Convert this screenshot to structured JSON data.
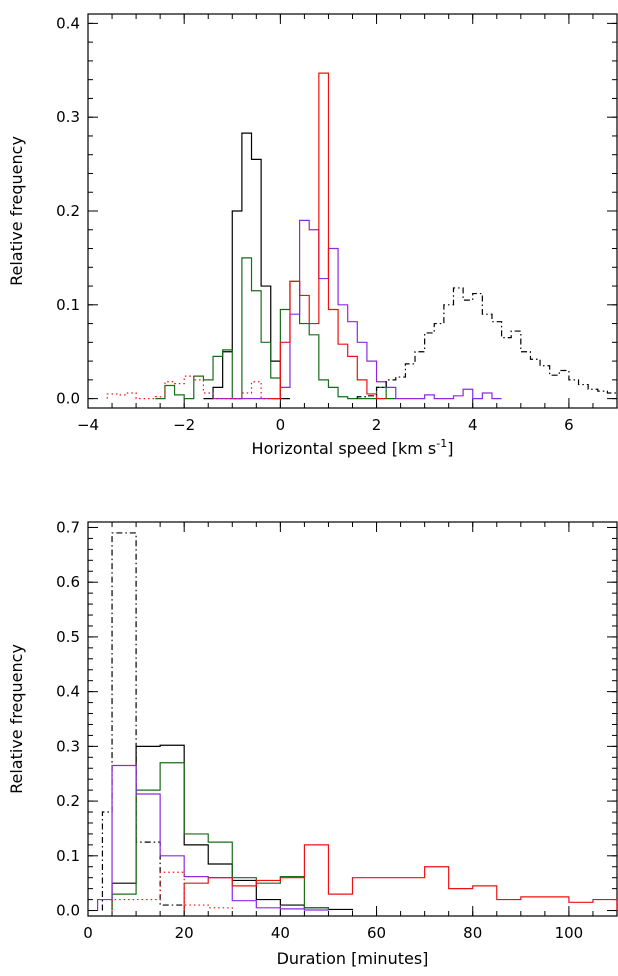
{
  "chart_data": [
    {
      "type": "histogram",
      "xlabel": "Horizontal speed [km s",
      "xlabel_sup": "-1",
      "xlabel_close": "]",
      "ylabel": "Relative frequency",
      "xlim": [
        -4,
        7
      ],
      "ylim": [
        -0.01,
        0.41
      ],
      "xticks": [
        -4,
        -2,
        0,
        2,
        4,
        6
      ],
      "xtick_labels": [
        "−4",
        "−2",
        "0",
        "2",
        "4",
        "6"
      ],
      "yticks": [
        0.0,
        0.1,
        0.2,
        0.3,
        0.4
      ],
      "ytick_labels": [
        "0.0",
        "0.1",
        "0.2",
        "0.3",
        "0.4"
      ],
      "series": [
        {
          "color": "#000000",
          "style": "solid",
          "bin_width": 0.2,
          "edges_start": -1.6,
          "values": [
            0.0,
            0.012,
            0.05,
            0.2,
            0.283,
            0.255,
            0.12,
            0.04,
            0.0
          ]
        },
        {
          "color": "#1a6b1a",
          "style": "solid",
          "bin_width": 0.2,
          "edges_start": -2.6,
          "values": [
            0.0,
            0.014,
            0.004,
            0.0,
            0.024,
            0.02,
            0.045,
            0.052,
            0.0,
            0.15,
            0.115,
            0.06,
            0.022,
            0.095,
            0.125,
            0.08,
            0.068,
            0.02,
            0.012,
            0.002,
            0.0,
            0.0,
            0.0,
            0.012,
            0.0
          ]
        },
        {
          "color": "#8a2be2",
          "style": "solid",
          "bin_width": 0.2,
          "edges_start": -1.4,
          "values": [
            0.0,
            0.0,
            0.0,
            0.0,
            0.0,
            0.0,
            0.0,
            0.012,
            0.09,
            0.19,
            0.18,
            0.128,
            0.16,
            0.1,
            0.082,
            0.06,
            0.04,
            0.018,
            0.012,
            0.0,
            0.0,
            0.0,
            0.004,
            0.0,
            0.0,
            0.003,
            0.01,
            0.0,
            0.006,
            0.0
          ]
        },
        {
          "color": "#ee1111",
          "style": "solid",
          "bin_width": 0.2,
          "edges_start": -0.2,
          "values": [
            0.0,
            0.06,
            0.125,
            0.11,
            0.08,
            0.347,
            0.095,
            0.058,
            0.045,
            0.02,
            0.005,
            0.0
          ]
        },
        {
          "color": "#ee1111",
          "style": "dotted",
          "bin_width": 0.2,
          "edges_start": -3.6,
          "values": [
            0.005,
            0.004,
            0.006,
            0.0,
            0.0,
            0.002,
            0.018,
            0.016,
            0.024,
            0.02,
            0.006,
            0.0,
            0.0,
            0.0,
            0.006,
            0.018,
            0.0
          ]
        },
        {
          "color": "#000000",
          "style": "dashdot",
          "bin_width": 0.2,
          "edges_start": 1.6,
          "values": [
            0.002,
            0.003,
            0.012,
            0.02,
            0.023,
            0.037,
            0.05,
            0.07,
            0.08,
            0.1,
            0.118,
            0.105,
            0.112,
            0.09,
            0.082,
            0.065,
            0.072,
            0.05,
            0.042,
            0.035,
            0.025,
            0.03,
            0.02,
            0.015,
            0.01,
            0.008,
            0.006,
            0.005,
            0.0
          ]
        }
      ]
    },
    {
      "type": "histogram",
      "xlabel": "Duration [minutes]",
      "ylabel": "Relative frequency",
      "xlim": [
        0,
        110
      ],
      "ylim": [
        -0.01,
        0.71
      ],
      "xticks": [
        0,
        20,
        40,
        60,
        80,
        100
      ],
      "xtick_labels": [
        "0",
        "20",
        "40",
        "60",
        "80",
        "100"
      ],
      "yticks": [
        0.0,
        0.1,
        0.2,
        0.3,
        0.4,
        0.5,
        0.6,
        0.7
      ],
      "ytick_labels": [
        "0.0",
        "0.1",
        "0.2",
        "0.3",
        "0.4",
        "0.5",
        "0.6",
        "0.7"
      ],
      "series": [
        {
          "color": "#000000",
          "style": "dashdot",
          "edges": [
            3,
            5,
            10,
            15,
            20
          ],
          "values": [
            0.18,
            0.69,
            0.125,
            0.01
          ]
        },
        {
          "color": "#000000",
          "style": "solid",
          "edges": [
            5,
            10,
            15,
            20,
            25,
            30,
            35,
            40,
            45,
            50,
            55
          ],
          "values": [
            0.05,
            0.3,
            0.302,
            0.12,
            0.085,
            0.055,
            0.02,
            0.01,
            0.005,
            0.002
          ]
        },
        {
          "color": "#1a6b1a",
          "style": "solid",
          "edges": [
            5,
            10,
            15,
            20,
            25,
            30,
            35,
            40,
            45,
            50
          ],
          "values": [
            0.03,
            0.22,
            0.27,
            0.14,
            0.125,
            0.06,
            0.05,
            0.062,
            0.005
          ]
        },
        {
          "color": "#8a2be2",
          "style": "solid",
          "edges": [
            2,
            5,
            10,
            15,
            20,
            25,
            30,
            35,
            40,
            45,
            50
          ],
          "values": [
            0.02,
            0.265,
            0.213,
            0.1,
            0.062,
            0.06,
            0.018,
            0.005,
            0.003,
            0.001
          ]
        },
        {
          "color": "#ee1111",
          "style": "dotted",
          "edges": [
            5,
            10,
            15,
            20,
            25,
            30
          ],
          "values": [
            0.02,
            0.02,
            0.07,
            0.01,
            0.005
          ]
        },
        {
          "color": "#ee1111",
          "style": "solid",
          "edges": [
            20,
            25,
            30,
            35,
            40,
            45,
            50,
            55,
            60,
            65,
            70,
            75,
            80,
            85,
            90,
            95,
            100,
            105,
            110
          ],
          "values": [
            0.05,
            0.06,
            0.045,
            0.055,
            0.06,
            0.12,
            0.03,
            0.06,
            0.06,
            0.06,
            0.08,
            0.04,
            0.045,
            0.02,
            0.025,
            0.025,
            0.015,
            0.02
          ]
        }
      ]
    }
  ]
}
